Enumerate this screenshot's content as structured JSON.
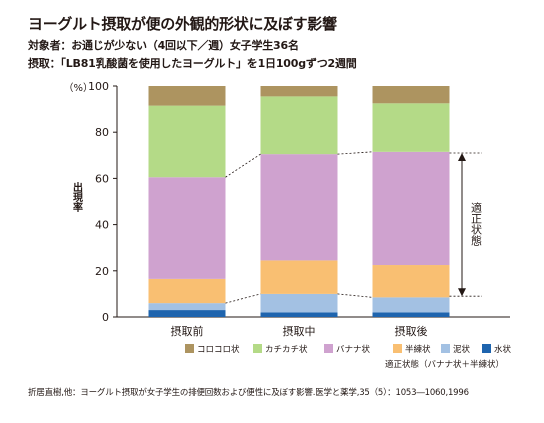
{
  "header": {
    "title": "ヨーグルト摂取が便の外観的形状に及ぼす影響",
    "subtitle1": "対象者：お通じが少ない（4回以下／週）女子学生36名",
    "subtitle2": "摂取：「LB81乳酸菌を使用したヨーグルト」を1日100gずつ2週間"
  },
  "chart_data": {
    "type": "bar",
    "stacked": true,
    "categories": [
      "摂取前",
      "摂取中",
      "摂取後"
    ],
    "y_unit": "（%）",
    "ylabel": "出現率",
    "ylim": [
      0,
      100
    ],
    "yticks": [
      "0",
      "20",
      "40",
      "60",
      "80",
      "100"
    ],
    "ytick_values": [
      0,
      20,
      40,
      60,
      80,
      100
    ],
    "grid": false,
    "legend_position": "bottom",
    "series": [
      {
        "name": "水状",
        "color": "#1e64ae",
        "values": [
          3,
          2,
          2
        ]
      },
      {
        "name": "泥状",
        "color": "#a3c1e3",
        "values": [
          3,
          8,
          6.5
        ]
      },
      {
        "name": "半練状",
        "color": "#f9bf72",
        "values": [
          10.5,
          14.5,
          14
        ]
      },
      {
        "name": "バナナ状",
        "color": "#cfa2cf",
        "values": [
          44,
          46,
          49
        ]
      },
      {
        "name": "カチカチ状",
        "color": "#b4da87",
        "values": [
          31,
          25,
          21
        ]
      },
      {
        "name": "コロコロ状",
        "color": "#ad9460",
        "values": [
          8.5,
          4.5,
          7.5
        ]
      }
    ],
    "legend_order": [
      "コロコロ状",
      "カチカチ状",
      "バナナ状",
      "半練状",
      "泥状",
      "水状"
    ],
    "annotation": {
      "label": "適正状態",
      "range": [
        9,
        71
      ],
      "note": "適正状態（バナナ状＋半練状）"
    }
  },
  "footer": {
    "citation": "折居直樹,他：ヨーグルト摂取が女子学生の排便回数および便性に及ぼす影響.医学と薬学,35（5）：1053―1060,1996"
  }
}
